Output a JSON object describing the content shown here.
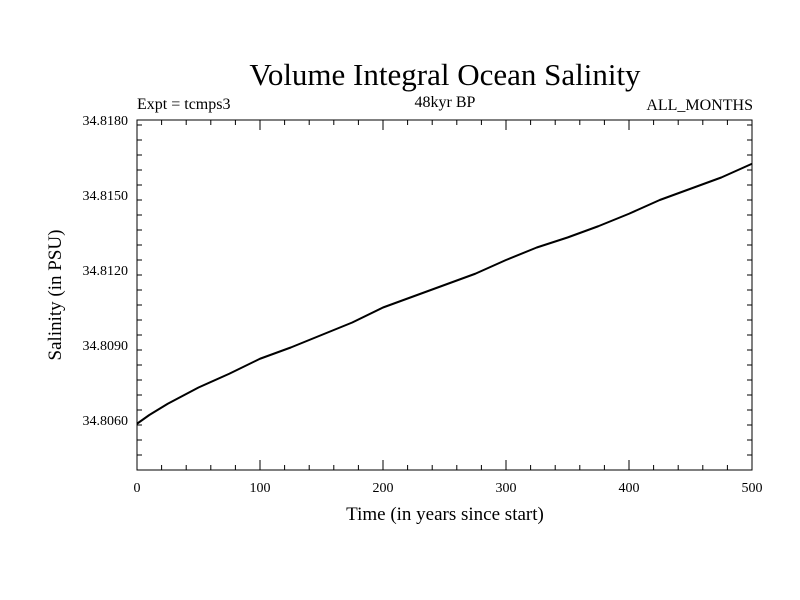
{
  "chart_data": {
    "type": "line",
    "title": "Volume Integral Ocean Salinity",
    "subtitle_left": "Expt = tcmps3",
    "subtitle_center": "48kyr BP",
    "subtitle_right": "ALL_MONTHS",
    "xlabel": "Time (in years since start)",
    "ylabel": "Salinity (in PSU)",
    "xlim": [
      0,
      500
    ],
    "ylim": [
      34.804,
      34.818
    ],
    "xticks": [
      0,
      100,
      200,
      300,
      400,
      500
    ],
    "xtick_labels": [
      "0",
      "100",
      "200",
      "300",
      "400",
      "500"
    ],
    "yticks": [
      34.806,
      34.809,
      34.812,
      34.815,
      34.818
    ],
    "ytick_labels": [
      "34.8060",
      "34.8090",
      "34.8120",
      "34.8150",
      "34.8180"
    ],
    "grid": false,
    "series": [
      {
        "name": "Volume Integral Ocean Salinity",
        "x": [
          0,
          10,
          25,
          50,
          75,
          100,
          125,
          150,
          175,
          200,
          225,
          250,
          275,
          300,
          325,
          350,
          375,
          400,
          425,
          450,
          475,
          500
        ],
        "values": [
          34.80585,
          34.8062,
          34.80665,
          34.8073,
          34.80785,
          34.80845,
          34.8089,
          34.8094,
          34.8099,
          34.8105,
          34.81095,
          34.8114,
          34.81185,
          34.8124,
          34.8129,
          34.8133,
          34.81375,
          34.81425,
          34.8148,
          34.81525,
          34.8157,
          34.81625
        ]
      }
    ]
  }
}
